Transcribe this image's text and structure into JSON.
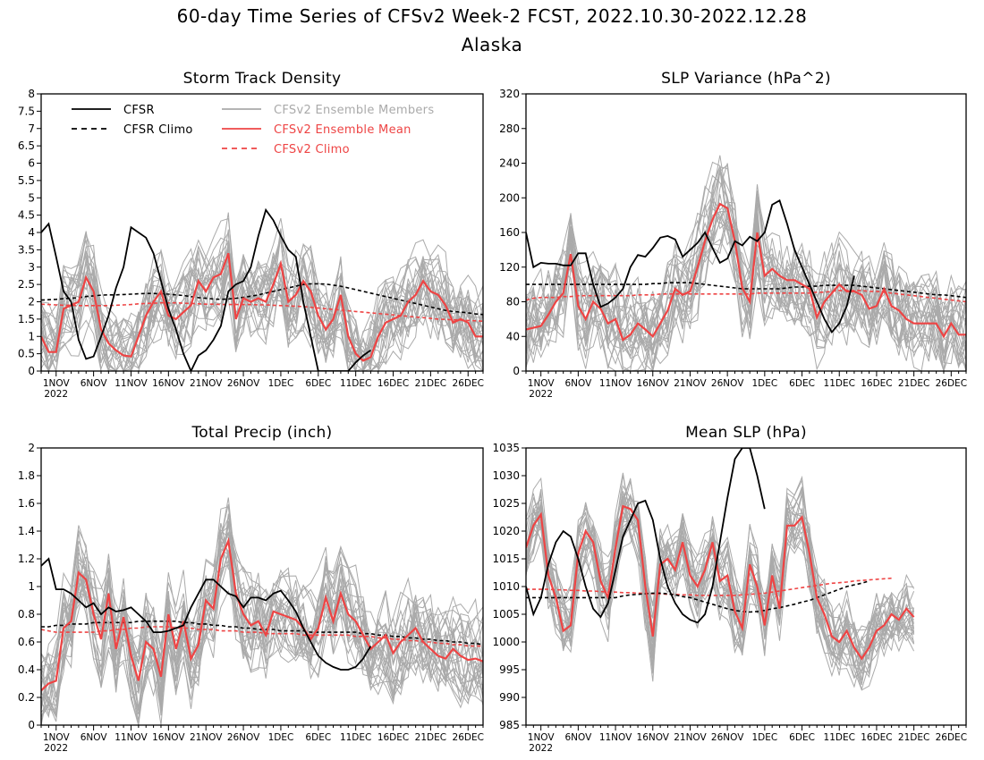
{
  "figure": {
    "title_line1": "60-day Time Series of CFSv2 Week-2 FCST, 2022.10.30-2022.12.28",
    "title_line2": "Alaska"
  },
  "colors": {
    "cfsr": "#000000",
    "members": "#aaaaaa",
    "ens_mean": "#ee4444",
    "axis": "#000000"
  },
  "legend": {
    "placement": "top-left of first panel",
    "entries": [
      {
        "key": "cfsr",
        "label": "CFSR",
        "color": "#000000",
        "style": "solid"
      },
      {
        "key": "cfsr_climo",
        "label": "CFSR Climo",
        "color": "#000000",
        "style": "dashed"
      },
      {
        "key": "members",
        "label": "CFSv2 Ensemble Members",
        "color": "#aaaaaa",
        "style": "solid"
      },
      {
        "key": "ens_mean",
        "label": "CFSv2 Ensemble Mean",
        "color": "#ee4444",
        "style": "solid"
      },
      {
        "key": "cfs_climo",
        "label": "CFSv2 Climo",
        "color": "#ee4444",
        "style": "dashed"
      }
    ]
  },
  "chart_data": [
    {
      "type": "line",
      "title": "Storm Track Density",
      "x": "day index 0..59 (0 = 2022-10-30)",
      "ylim": [
        0,
        8
      ],
      "yticks": [
        "0",
        "0.5",
        "1",
        "1.5",
        "2",
        "2.5",
        "3",
        "3.5",
        "4",
        "4.5",
        "5",
        "5.5",
        "6",
        "6.5",
        "7",
        "7.5",
        "8"
      ],
      "xticks": [
        "1NOV",
        "6NOV",
        "11NOV",
        "16NOV",
        "21NOV",
        "26NOV",
        "1DEC",
        "6DEC",
        "11DEC",
        "16DEC",
        "21DEC",
        "26DEC"
      ],
      "xtick_sub": "2022",
      "grid": false,
      "series": {
        "cfsr": [
          4.0,
          4.25,
          3.3,
          2.3,
          2.0,
          0.9,
          0.35,
          0.42,
          1.0,
          1.6,
          2.4,
          3.0,
          4.15,
          4.0,
          3.85,
          3.4,
          2.6,
          1.8,
          1.2,
          0.5,
          0.0,
          0.45,
          0.6,
          0.9,
          1.3,
          2.3,
          2.5,
          2.6,
          3.0,
          3.9,
          4.65,
          4.35,
          3.9,
          3.5,
          3.3,
          2.0,
          1.0,
          0.0,
          0.0,
          0.0,
          0.0,
          0.0,
          0.25,
          0.45,
          0.6
        ],
        "cfsr_climo": [
          2.05,
          2.06,
          2.07,
          2.09,
          2.1,
          2.12,
          2.15,
          2.17,
          2.19,
          2.2,
          2.2,
          2.21,
          2.22,
          2.23,
          2.24,
          2.24,
          2.23,
          2.22,
          2.2,
          2.18,
          2.15,
          2.12,
          2.1,
          2.08,
          2.07,
          2.08,
          2.1,
          2.13,
          2.16,
          2.2,
          2.25,
          2.3,
          2.35,
          2.4,
          2.45,
          2.5,
          2.52,
          2.52,
          2.51,
          2.48,
          2.45,
          2.4,
          2.35,
          2.3,
          2.25,
          2.2,
          2.15,
          2.1,
          2.05,
          2.0,
          1.95,
          1.9,
          1.85,
          1.8,
          1.75,
          1.72,
          1.7,
          1.68,
          1.65,
          1.63
        ],
        "ens_mean": [
          1.0,
          0.55,
          0.55,
          1.8,
          1.9,
          2.0,
          2.7,
          2.3,
          1.2,
          0.8,
          0.6,
          0.45,
          0.42,
          1.0,
          1.6,
          2.0,
          2.3,
          1.6,
          1.5,
          1.7,
          1.9,
          2.6,
          2.3,
          2.7,
          2.8,
          3.4,
          1.5,
          2.1,
          2.0,
          2.1,
          2.0,
          2.5,
          3.1,
          2.0,
          2.2,
          2.6,
          2.3,
          1.6,
          1.2,
          1.5,
          2.2,
          1.0,
          0.5,
          0.3,
          0.4,
          1.0,
          1.4,
          1.5,
          1.6,
          2.0,
          2.2,
          2.6,
          2.3,
          2.2,
          1.9,
          1.4,
          1.5,
          1.4,
          1.0,
          1.0
        ],
        "cfs_climo": [
          1.93,
          1.92,
          1.91,
          1.9,
          1.9,
          1.89,
          1.89,
          1.89,
          1.89,
          1.89,
          1.9,
          1.91,
          1.92,
          1.94,
          1.95,
          1.96,
          1.97,
          1.97,
          1.97,
          1.96,
          1.95,
          1.94,
          1.93,
          1.93,
          1.92,
          1.92,
          1.92,
          1.92,
          1.92,
          1.91,
          1.91,
          1.9,
          1.89,
          1.88,
          1.87,
          1.86,
          1.84,
          1.82,
          1.8,
          1.78,
          1.76,
          1.74,
          1.72,
          1.7,
          1.68,
          1.66,
          1.64,
          1.62,
          1.6,
          1.58,
          1.56,
          1.54,
          1.52,
          1.5,
          1.49,
          1.48,
          1.47,
          1.46,
          1.45,
          1.44
        ],
        "member_count": 24,
        "member_spread": 1.05
      }
    },
    {
      "type": "line",
      "title": "SLP Variance (hPa^2)",
      "ylim": [
        0,
        320
      ],
      "yticks": [
        "0",
        "40",
        "80",
        "120",
        "160",
        "200",
        "240",
        "280",
        "320"
      ],
      "xticks": [
        "1NOV",
        "6NOV",
        "11NOV",
        "16NOV",
        "21NOV",
        "26NOV",
        "1DEC",
        "6DEC",
        "11DEC",
        "16DEC",
        "21DEC",
        "26DEC"
      ],
      "xtick_sub": "2022",
      "grid": false,
      "series": {
        "cfsr": [
          160,
          120,
          125,
          124,
          124,
          122,
          122,
          136,
          136,
          100,
          74,
          78,
          85,
          95,
          120,
          134,
          132,
          142,
          154,
          156,
          152,
          132,
          140,
          148,
          160,
          142,
          125,
          130,
          150,
          145,
          155,
          150,
          160,
          192,
          197,
          170,
          140,
          120,
          100,
          80,
          60,
          45,
          55,
          75,
          110
        ],
        "cfsr_climo": [
          100,
          100,
          100,
          100,
          100,
          100,
          100,
          100,
          100,
          100,
          100,
          100,
          100,
          100,
          100,
          100,
          100,
          101,
          101,
          102,
          102,
          102,
          102,
          101,
          100,
          99,
          98,
          97,
          96,
          95,
          95,
          95,
          95,
          95,
          95,
          96,
          97,
          97,
          98,
          98,
          99,
          99,
          99,
          99,
          99,
          98,
          97,
          96,
          95,
          94,
          93,
          92,
          91,
          90,
          89,
          88,
          88,
          87,
          86,
          85
        ],
        "ens_mean": [
          48,
          50,
          52,
          65,
          80,
          90,
          135,
          75,
          60,
          80,
          72,
          55,
          60,
          36,
          42,
          55,
          48,
          40,
          55,
          70,
          95,
          88,
          92,
          120,
          150,
          175,
          193,
          188,
          150,
          96,
          80,
          160,
          110,
          118,
          110,
          105,
          105,
          100,
          95,
          62,
          80,
          90,
          100,
          92,
          92,
          88,
          72,
          75,
          95,
          75,
          70,
          60,
          55,
          55,
          55,
          55,
          40,
          55,
          42,
          42
        ],
        "cfs_climo": [
          82,
          84,
          85,
          85,
          85,
          86,
          86,
          87,
          87,
          87,
          87,
          87,
          87,
          87,
          87,
          88,
          88,
          88,
          89,
          89,
          89,
          89,
          89,
          89,
          89,
          89,
          89,
          89,
          89,
          89,
          89,
          90,
          90,
          90,
          90,
          90,
          90,
          90,
          90,
          91,
          91,
          92,
          93,
          93,
          93,
          93,
          92,
          92,
          91,
          90,
          89,
          88,
          87,
          86,
          85,
          84,
          83,
          82,
          81,
          80
        ],
        "member_count": 24,
        "member_spread": 45
      }
    },
    {
      "type": "line",
      "title": "Total Precip (inch)",
      "ylim": [
        0,
        2
      ],
      "yticks": [
        "0",
        "0.2",
        "0.4",
        "0.6",
        "0.8",
        "1",
        "1.2",
        "1.4",
        "1.6",
        "1.8",
        "2"
      ],
      "xticks": [
        "1NOV",
        "6NOV",
        "11NOV",
        "16NOV",
        "21NOV",
        "26NOV",
        "1DEC",
        "6DEC",
        "11DEC",
        "16DEC",
        "21DEC",
        "26DEC"
      ],
      "xtick_sub": "2022",
      "grid": false,
      "series": {
        "cfsr": [
          1.15,
          1.2,
          0.98,
          0.98,
          0.95,
          0.9,
          0.85,
          0.88,
          0.8,
          0.85,
          0.82,
          0.83,
          0.85,
          0.8,
          0.75,
          0.67,
          0.67,
          0.68,
          0.7,
          0.72,
          0.85,
          0.95,
          1.05,
          1.05,
          1.0,
          0.95,
          0.93,
          0.85,
          0.92,
          0.92,
          0.9,
          0.95,
          0.97,
          0.9,
          0.82,
          0.7,
          0.6,
          0.5,
          0.45,
          0.42,
          0.4,
          0.4,
          0.42,
          0.48,
          0.57
        ],
        "cfsr_climo": [
          0.71,
          0.71,
          0.72,
          0.72,
          0.73,
          0.73,
          0.73,
          0.74,
          0.74,
          0.74,
          0.74,
          0.74,
          0.74,
          0.75,
          0.75,
          0.75,
          0.75,
          0.75,
          0.75,
          0.74,
          0.74,
          0.73,
          0.73,
          0.72,
          0.72,
          0.71,
          0.71,
          0.7,
          0.7,
          0.69,
          0.69,
          0.69,
          0.68,
          0.68,
          0.68,
          0.68,
          0.67,
          0.67,
          0.67,
          0.67,
          0.67,
          0.67,
          0.67,
          0.66,
          0.66,
          0.65,
          0.65,
          0.64,
          0.64,
          0.63,
          0.63,
          0.62,
          0.62,
          0.61,
          0.61,
          0.6,
          0.6,
          0.59,
          0.59,
          0.58
        ],
        "ens_mean": [
          0.25,
          0.3,
          0.32,
          0.7,
          0.75,
          1.1,
          1.05,
          0.8,
          0.62,
          0.95,
          0.55,
          0.78,
          0.5,
          0.32,
          0.6,
          0.55,
          0.35,
          0.8,
          0.55,
          0.75,
          0.48,
          0.58,
          0.9,
          0.84,
          1.2,
          1.33,
          0.95,
          0.8,
          0.72,
          0.75,
          0.65,
          0.82,
          0.8,
          0.78,
          0.76,
          0.7,
          0.62,
          0.7,
          0.92,
          0.75,
          0.95,
          0.8,
          0.75,
          0.65,
          0.55,
          0.6,
          0.65,
          0.52,
          0.6,
          0.65,
          0.7,
          0.6,
          0.55,
          0.5,
          0.48,
          0.55,
          0.5,
          0.47,
          0.48,
          0.46
        ],
        "cfs_climo": [
          0.69,
          0.68,
          0.67,
          0.67,
          0.67,
          0.67,
          0.67,
          0.67,
          0.68,
          0.68,
          0.69,
          0.69,
          0.7,
          0.7,
          0.71,
          0.71,
          0.71,
          0.71,
          0.7,
          0.7,
          0.7,
          0.69,
          0.69,
          0.69,
          0.68,
          0.68,
          0.68,
          0.67,
          0.67,
          0.67,
          0.66,
          0.66,
          0.66,
          0.66,
          0.66,
          0.65,
          0.65,
          0.65,
          0.65,
          0.65,
          0.65,
          0.65,
          0.64,
          0.64,
          0.64,
          0.63,
          0.63,
          0.62,
          0.62,
          0.61,
          0.61,
          0.6,
          0.6,
          0.59,
          0.59,
          0.58,
          0.58,
          0.57,
          0.57,
          0.57
        ],
        "member_count": 24,
        "member_spread": 0.28
      }
    },
    {
      "type": "line",
      "title": "Mean SLP (hPa)",
      "ylim": [
        985,
        1035
      ],
      "yticks": [
        "985",
        "990",
        "995",
        "1000",
        "1005",
        "1010",
        "1015",
        "1020",
        "1025",
        "1030",
        "1035"
      ],
      "xticks": [
        "1NOV",
        "6NOV",
        "11NOV",
        "16NOV",
        "21NOV",
        "26NOV",
        "1DEC",
        "6DEC",
        "11DEC",
        "16DEC",
        "21DEC",
        "26DEC"
      ],
      "xtick_sub": "2022",
      "grid": false,
      "series": {
        "cfsr": [
          1010,
          1005,
          1008,
          1014,
          1018,
          1020,
          1019,
          1015,
          1010,
          1006,
          1004.5,
          1007,
          1013,
          1019,
          1022,
          1025,
          1025.5,
          1022,
          1015,
          1010,
          1007,
          1005,
          1004,
          1003.5,
          1005,
          1010,
          1018,
          1026,
          1033,
          1036,
          1035,
          1030,
          1024
        ],
        "cfsr_climo": [
          1008,
          1008,
          1008,
          1008,
          1008,
          1008,
          1008,
          1008,
          1008,
          1008,
          1008,
          1008,
          1008,
          1008.3,
          1008.5,
          1008.6,
          1008.7,
          1008.8,
          1008.8,
          1008.7,
          1008.5,
          1008.2,
          1008,
          1007.6,
          1007.2,
          1006.8,
          1006.4,
          1006,
          1005.7,
          1005.5,
          1005.4,
          1005.5,
          1005.7,
          1006,
          1006.2,
          1006.5,
          1006.8,
          1007.2,
          1007.5,
          1008,
          1008.5,
          1009,
          1009.5,
          1010,
          1010.3,
          1010.6,
          1011
        ],
        "ens_mean": [
          1017,
          1021,
          1023,
          1012,
          1008,
          1002,
          1003,
          1016,
          1020,
          1018,
          1011,
          1008,
          1017,
          1024.5,
          1024,
          1022,
          1010,
          1001,
          1014,
          1015,
          1013,
          1018,
          1012,
          1010,
          1013,
          1018,
          1011,
          1012,
          1005.5,
          1002.5,
          1014,
          1010,
          1003,
          1012,
          1006,
          1021,
          1021,
          1022.5,
          1016,
          1008,
          1005,
          1001,
          1000,
          1002,
          999,
          997,
          999,
          1002,
          1003,
          1005,
          1004,
          1006,
          1004.5
        ],
        "cfs_climo": [
          1009.5,
          1009.5,
          1009.5,
          1009.5,
          1009.4,
          1009.4,
          1009.3,
          1009.3,
          1009.2,
          1009.2,
          1009.1,
          1009,
          1009,
          1008.9,
          1008.9,
          1008.8,
          1008.8,
          1008.7,
          1008.7,
          1008.6,
          1008.6,
          1008.5,
          1008.5,
          1008.4,
          1008.4,
          1008.4,
          1008.4,
          1008.4,
          1008.4,
          1008.5,
          1008.6,
          1008.7,
          1008.8,
          1009,
          1009.2,
          1009.4,
          1009.6,
          1009.8,
          1010,
          1010.2,
          1010.4,
          1010.6,
          1010.7,
          1010.8,
          1011,
          1011.1,
          1011.2,
          1011.3,
          1011.4,
          1011.5
        ],
        "member_count": 24,
        "member_spread": 5.5
      }
    }
  ]
}
